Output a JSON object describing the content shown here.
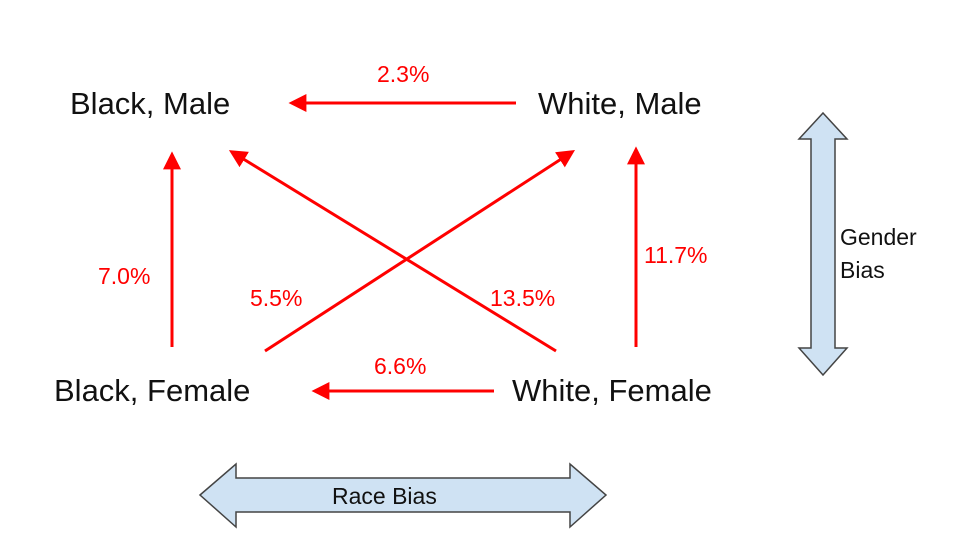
{
  "diagram": {
    "nodes": {
      "black_male": "Black, Male",
      "white_male": "White, Male",
      "black_female": "Black, Female",
      "white_female": "White, Female"
    },
    "edges": {
      "white_male_to_black_male": "2.3%",
      "black_female_to_black_male": "7.0%",
      "white_female_to_white_male": "11.7%",
      "black_female_to_white_male": "5.5%",
      "white_female_to_black_male": "13.5%",
      "white_female_to_black_female": "6.6%"
    },
    "gender_bias": {
      "line1": "Gender",
      "line2": "Bias"
    },
    "race_bias": "Race Bias"
  },
  "colors": {
    "arrow": "#ff0000",
    "label_text": "#111111",
    "bias_fill": "#cfe2f3",
    "bias_stroke": "#444444"
  }
}
